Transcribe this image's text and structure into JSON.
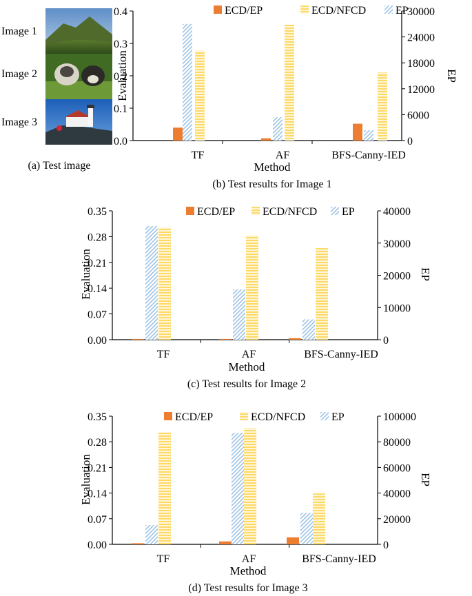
{
  "panel_a": {
    "image_labels": [
      "Image 1",
      "Image 2",
      "Image 3"
    ],
    "caption": "(a) Test image"
  },
  "colors": {
    "ecd_ep": "#ED7D31",
    "ecd_nfcd": "#FFD966",
    "ep": "#9DC3E6"
  },
  "chart_data": [
    {
      "type": "bar",
      "caption": "(b) Test results for Image 1",
      "xlabel": "Method",
      "ylabel": "Evaluation",
      "y2label": "EP",
      "categories": [
        "TF",
        "AF",
        "BFS-Canny-IED"
      ],
      "ylim": [
        0,
        0.4
      ],
      "yticks": [
        "0.0",
        "0.1",
        "0.2",
        "0.3",
        "0.4"
      ],
      "y2lim": [
        0,
        30000
      ],
      "y2ticks": [
        "0",
        "6000",
        "12000",
        "18000",
        "24000",
        "30000"
      ],
      "series": [
        {
          "name": "ECD/EP",
          "axis": "left",
          "values": [
            0.04,
            0.007,
            0.052
          ]
        },
        {
          "name": "EP",
          "axis": "right",
          "values": [
            27000,
            5400,
            2400
          ]
        },
        {
          "name": "ECD/NFCD",
          "axis": "left",
          "values": [
            0.277,
            0.358,
            0.21
          ]
        }
      ],
      "legend_order": [
        "ECD/EP",
        "ECD/NFCD",
        "EP"
      ]
    },
    {
      "type": "bar",
      "caption": "(c) Test results for Image 2",
      "xlabel": "Method",
      "ylabel": "Evaluation",
      "y2label": "EP",
      "categories": [
        "TF",
        "AF",
        "BFS-Canny-IED"
      ],
      "ylim": [
        0,
        0.35
      ],
      "yticks": [
        "0.00",
        "0.07",
        "0.14",
        "0.21",
        "0.28",
        "0.35"
      ],
      "y2lim": [
        0,
        40000
      ],
      "y2ticks": [
        "0",
        "10000",
        "20000",
        "30000",
        "40000"
      ],
      "series": [
        {
          "name": "ECD/EP",
          "axis": "left",
          "values": [
            0.002,
            0.002,
            0.004
          ]
        },
        {
          "name": "EP",
          "axis": "right",
          "values": [
            35300,
            15600,
            6300
          ]
        },
        {
          "name": "ECD/NFCD",
          "axis": "left",
          "values": [
            0.305,
            0.283,
            0.249
          ]
        }
      ],
      "legend_order": [
        "ECD/EP",
        "ECD/NFCD",
        "EP"
      ]
    },
    {
      "type": "bar",
      "caption": "(d) Test results for Image 3",
      "xlabel": "Method",
      "ylabel": "Evaluation",
      "y2label": "EP",
      "categories": [
        "TF",
        "AF",
        "BFS-Canny-IED"
      ],
      "ylim": [
        0,
        0.35
      ],
      "yticks": [
        "0.00",
        "0.07",
        "0.14",
        "0.21",
        "0.28",
        "0.35"
      ],
      "y2lim": [
        0,
        100000
      ],
      "y2ticks": [
        "0",
        "20000",
        "40000",
        "60000",
        "80000",
        "100000"
      ],
      "series": [
        {
          "name": "ECD/EP",
          "axis": "left",
          "values": [
            0.003,
            0.008,
            0.019
          ]
        },
        {
          "name": "EP",
          "axis": "right",
          "values": [
            15000,
            87000,
            24500
          ]
        },
        {
          "name": "ECD/NFCD",
          "axis": "left",
          "values": [
            0.306,
            0.317,
            0.139
          ]
        }
      ],
      "legend_order": [
        "ECD/EP",
        "ECD/NFCD",
        "EP"
      ]
    }
  ]
}
